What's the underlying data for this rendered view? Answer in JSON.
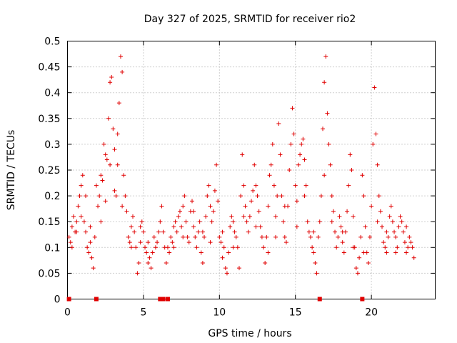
{
  "chart_data": {
    "type": "scatter",
    "title": "Day 327 of 2025, SRMTID for receiver rio2",
    "xlabel": "GPS time / hours",
    "ylabel": "SRMTID / TECUs",
    "xlim": [
      0,
      24.2
    ],
    "ylim": [
      0,
      0.5
    ],
    "x_ticks": [
      0,
      5,
      10,
      15,
      20
    ],
    "x_tick_labels": [
      "0",
      "5",
      "10",
      "15",
      "20"
    ],
    "y_ticks": [
      0,
      0.05,
      0.1,
      0.15,
      0.2,
      0.25,
      0.3,
      0.35,
      0.4,
      0.45,
      0.5
    ],
    "y_tick_labels": [
      "0",
      "0.05",
      "0.1",
      "0.15",
      "0.2",
      "0.25",
      "0.3",
      "0.35",
      "0.4",
      "0.45",
      "0.5"
    ],
    "grid": true,
    "marker": "+",
    "color": "#e00000",
    "zero_markers": {
      "x": [
        0.1,
        1.9,
        6.1,
        6.3,
        6.6,
        16.6,
        19.4
      ],
      "y": 0
    },
    "series": [
      {
        "name": "SRMTID",
        "points": [
          [
            0.1,
            0.12
          ],
          [
            0.2,
            0.11
          ],
          [
            0.3,
            0.14
          ],
          [
            0.4,
            0.16
          ],
          [
            0.5,
            0.13
          ],
          [
            0.6,
            0.15
          ],
          [
            0.7,
            0.18
          ],
          [
            0.8,
            0.2
          ],
          [
            0.9,
            0.22
          ],
          [
            1.0,
            0.24
          ],
          [
            1.1,
            0.15
          ],
          [
            1.2,
            0.13
          ],
          [
            1.3,
            0.1
          ],
          [
            1.4,
            0.09
          ],
          [
            1.5,
            0.11
          ],
          [
            1.6,
            0.08
          ],
          [
            1.7,
            0.06
          ],
          [
            1.8,
            0.12
          ],
          [
            1.9,
            0.22
          ],
          [
            2.0,
            0.18
          ],
          [
            2.1,
            0.2
          ],
          [
            2.2,
            0.24
          ],
          [
            2.3,
            0.23
          ],
          [
            2.4,
            0.3
          ],
          [
            2.5,
            0.28
          ],
          [
            2.6,
            0.27
          ],
          [
            2.7,
            0.35
          ],
          [
            2.8,
            0.42
          ],
          [
            2.9,
            0.43
          ],
          [
            3.0,
            0.33
          ],
          [
            3.1,
            0.21
          ],
          [
            3.2,
            0.2
          ],
          [
            3.3,
            0.26
          ],
          [
            3.4,
            0.38
          ],
          [
            3.5,
            0.47
          ],
          [
            3.6,
            0.44
          ],
          [
            3.7,
            0.24
          ],
          [
            3.8,
            0.2
          ],
          [
            3.9,
            0.17
          ],
          [
            4.0,
            0.12
          ],
          [
            4.1,
            0.11
          ],
          [
            4.2,
            0.14
          ],
          [
            4.3,
            0.16
          ],
          [
            4.4,
            0.13
          ],
          [
            4.5,
            0.1
          ],
          [
            4.6,
            0.05
          ],
          [
            4.7,
            0.07
          ],
          [
            4.8,
            0.11
          ],
          [
            4.9,
            0.15
          ],
          [
            5.0,
            0.13
          ],
          [
            5.1,
            0.1
          ],
          [
            5.2,
            0.09
          ],
          [
            5.3,
            0.11
          ],
          [
            5.4,
            0.08
          ],
          [
            5.5,
            0.06
          ],
          [
            5.6,
            0.09
          ],
          [
            5.7,
            0.12
          ],
          [
            5.8,
            0.1
          ],
          [
            5.9,
            0.11
          ],
          [
            6.0,
            0.13
          ],
          [
            6.1,
            0.15
          ],
          [
            6.2,
            0.18
          ],
          [
            6.3,
            0.13
          ],
          [
            6.4,
            0.1
          ],
          [
            6.5,
            0.07
          ],
          [
            6.6,
            0.1
          ],
          [
            6.7,
            0.09
          ],
          [
            6.8,
            0.12
          ],
          [
            6.9,
            0.11
          ],
          [
            7.0,
            0.14
          ],
          [
            7.1,
            0.15
          ],
          [
            7.2,
            0.13
          ],
          [
            7.3,
            0.16
          ],
          [
            7.4,
            0.17
          ],
          [
            7.5,
            0.14
          ],
          [
            7.6,
            0.18
          ],
          [
            7.7,
            0.2
          ],
          [
            7.8,
            0.15
          ],
          [
            7.9,
            0.12
          ],
          [
            8.0,
            0.11
          ],
          [
            8.1,
            0.17
          ],
          [
            8.2,
            0.19
          ],
          [
            8.3,
            0.14
          ],
          [
            8.4,
            0.12
          ],
          [
            8.5,
            0.1
          ],
          [
            8.6,
            0.13
          ],
          [
            8.7,
            0.15
          ],
          [
            8.8,
            0.09
          ],
          [
            8.9,
            0.07
          ],
          [
            9.0,
            0.12
          ],
          [
            9.1,
            0.16
          ],
          [
            9.2,
            0.2
          ],
          [
            9.3,
            0.22
          ],
          [
            9.4,
            0.18
          ],
          [
            9.5,
            0.15
          ],
          [
            9.6,
            0.17
          ],
          [
            9.7,
            0.21
          ],
          [
            9.8,
            0.26
          ],
          [
            9.9,
            0.19
          ],
          [
            10.0,
            0.12
          ],
          [
            10.1,
            0.11
          ],
          [
            10.2,
            0.13
          ],
          [
            10.3,
            0.1
          ],
          [
            10.4,
            0.06
          ],
          [
            10.5,
            0.05
          ],
          [
            10.6,
            0.09
          ],
          [
            10.7,
            0.14
          ],
          [
            10.8,
            0.16
          ],
          [
            10.9,
            0.15
          ],
          [
            11.0,
            0.13
          ],
          [
            11.1,
            0.12
          ],
          [
            11.2,
            0.1
          ],
          [
            11.3,
            0.06
          ],
          [
            11.4,
            0.2
          ],
          [
            11.5,
            0.28
          ],
          [
            11.6,
            0.22
          ],
          [
            11.7,
            0.18
          ],
          [
            11.8,
            0.15
          ],
          [
            11.9,
            0.13
          ],
          [
            12.0,
            0.16
          ],
          [
            12.1,
            0.19
          ],
          [
            12.2,
            0.21
          ],
          [
            12.3,
            0.26
          ],
          [
            12.4,
            0.22
          ],
          [
            12.5,
            0.2
          ],
          [
            12.6,
            0.17
          ],
          [
            12.7,
            0.14
          ],
          [
            12.8,
            0.12
          ],
          [
            12.9,
            0.1
          ],
          [
            13.0,
            0.07
          ],
          [
            13.1,
            0.12
          ],
          [
            13.2,
            0.18
          ],
          [
            13.3,
            0.24
          ],
          [
            13.4,
            0.26
          ],
          [
            13.5,
            0.3
          ],
          [
            13.6,
            0.22
          ],
          [
            13.7,
            0.16
          ],
          [
            13.8,
            0.2
          ],
          [
            13.9,
            0.34
          ],
          [
            14.0,
            0.28
          ],
          [
            14.1,
            0.2
          ],
          [
            14.2,
            0.15
          ],
          [
            14.3,
            0.12
          ],
          [
            14.4,
            0.11
          ],
          [
            14.5,
            0.18
          ],
          [
            14.6,
            0.25
          ],
          [
            14.7,
            0.3
          ],
          [
            14.8,
            0.37
          ],
          [
            14.9,
            0.32
          ],
          [
            15.0,
            0.22
          ],
          [
            15.1,
            0.19
          ],
          [
            15.2,
            0.26
          ],
          [
            15.3,
            0.28
          ],
          [
            15.4,
            0.3
          ],
          [
            15.5,
            0.31
          ],
          [
            15.6,
            0.27
          ],
          [
            15.7,
            0.22
          ],
          [
            15.8,
            0.15
          ],
          [
            15.9,
            0.13
          ],
          [
            16.0,
            0.12
          ],
          [
            16.1,
            0.1
          ],
          [
            16.2,
            0.09
          ],
          [
            16.3,
            0.07
          ],
          [
            16.4,
            0.05
          ],
          [
            16.5,
            0.12
          ],
          [
            16.6,
            0.15
          ],
          [
            16.7,
            0.2
          ],
          [
            16.8,
            0.33
          ],
          [
            16.9,
            0.42
          ],
          [
            17.0,
            0.47
          ],
          [
            17.1,
            0.36
          ],
          [
            17.2,
            0.3
          ],
          [
            17.3,
            0.26
          ],
          [
            17.4,
            0.2
          ],
          [
            17.5,
            0.17
          ],
          [
            17.6,
            0.13
          ],
          [
            17.7,
            0.1
          ],
          [
            17.8,
            0.12
          ],
          [
            17.9,
            0.16
          ],
          [
            18.0,
            0.14
          ],
          [
            18.1,
            0.11
          ],
          [
            18.2,
            0.09
          ],
          [
            18.3,
            0.13
          ],
          [
            18.4,
            0.17
          ],
          [
            18.5,
            0.22
          ],
          [
            18.6,
            0.28
          ],
          [
            18.7,
            0.25
          ],
          [
            18.8,
            0.16
          ],
          [
            18.9,
            0.1
          ],
          [
            19.0,
            0.06
          ],
          [
            19.1,
            0.05
          ],
          [
            19.2,
            0.08
          ],
          [
            19.3,
            0.12
          ],
          [
            19.4,
            0.24
          ],
          [
            19.5,
            0.2
          ],
          [
            19.6,
            0.14
          ],
          [
            19.7,
            0.09
          ],
          [
            19.8,
            0.07
          ],
          [
            19.9,
            0.12
          ],
          [
            20.0,
            0.18
          ],
          [
            20.1,
            0.3
          ],
          [
            20.2,
            0.41
          ],
          [
            20.3,
            0.32
          ],
          [
            20.4,
            0.26
          ],
          [
            20.5,
            0.2
          ],
          [
            20.6,
            0.17
          ],
          [
            20.7,
            0.14
          ],
          [
            20.8,
            0.11
          ],
          [
            20.9,
            0.1
          ],
          [
            21.0,
            0.09
          ],
          [
            21.1,
            0.12
          ],
          [
            21.2,
            0.16
          ],
          [
            21.3,
            0.18
          ],
          [
            21.4,
            0.15
          ],
          [
            21.5,
            0.13
          ],
          [
            21.6,
            0.12
          ],
          [
            21.7,
            0.1
          ],
          [
            21.8,
            0.14
          ],
          [
            21.9,
            0.16
          ],
          [
            22.0,
            0.15
          ],
          [
            22.1,
            0.13
          ],
          [
            22.2,
            0.11
          ],
          [
            22.3,
            0.09
          ],
          [
            22.4,
            0.1
          ],
          [
            22.5,
            0.12
          ],
          [
            22.6,
            0.11
          ],
          [
            22.7,
            0.1
          ],
          [
            22.8,
            0.08
          ],
          [
            0.3,
            0.1
          ],
          [
            0.6,
            0.13
          ],
          [
            0.9,
            0.16
          ],
          [
            1.2,
            0.2
          ],
          [
            1.5,
            0.14
          ],
          [
            2.2,
            0.15
          ],
          [
            2.5,
            0.19
          ],
          [
            2.8,
            0.26
          ],
          [
            3.1,
            0.29
          ],
          [
            3.3,
            0.32
          ],
          [
            3.6,
            0.18
          ],
          [
            4.2,
            0.1
          ],
          [
            4.8,
            0.14
          ],
          [
            5.3,
            0.07
          ],
          [
            7.0,
            0.1
          ],
          [
            7.6,
            0.12
          ],
          [
            8.3,
            0.17
          ],
          [
            8.9,
            0.13
          ],
          [
            9.4,
            0.11
          ],
          [
            10.2,
            0.08
          ],
          [
            10.9,
            0.1
          ],
          [
            11.6,
            0.16
          ],
          [
            12.4,
            0.14
          ],
          [
            13.2,
            0.09
          ],
          [
            13.7,
            0.12
          ],
          [
            14.3,
            0.18
          ],
          [
            15.1,
            0.14
          ],
          [
            15.6,
            0.2
          ],
          [
            16.2,
            0.13
          ],
          [
            16.9,
            0.24
          ],
          [
            17.4,
            0.15
          ],
          [
            18.1,
            0.13
          ],
          [
            18.8,
            0.1
          ],
          [
            19.5,
            0.09
          ],
          [
            20.4,
            0.15
          ],
          [
            21.0,
            0.13
          ],
          [
            21.6,
            0.09
          ],
          [
            22.3,
            0.14
          ]
        ]
      }
    ]
  }
}
